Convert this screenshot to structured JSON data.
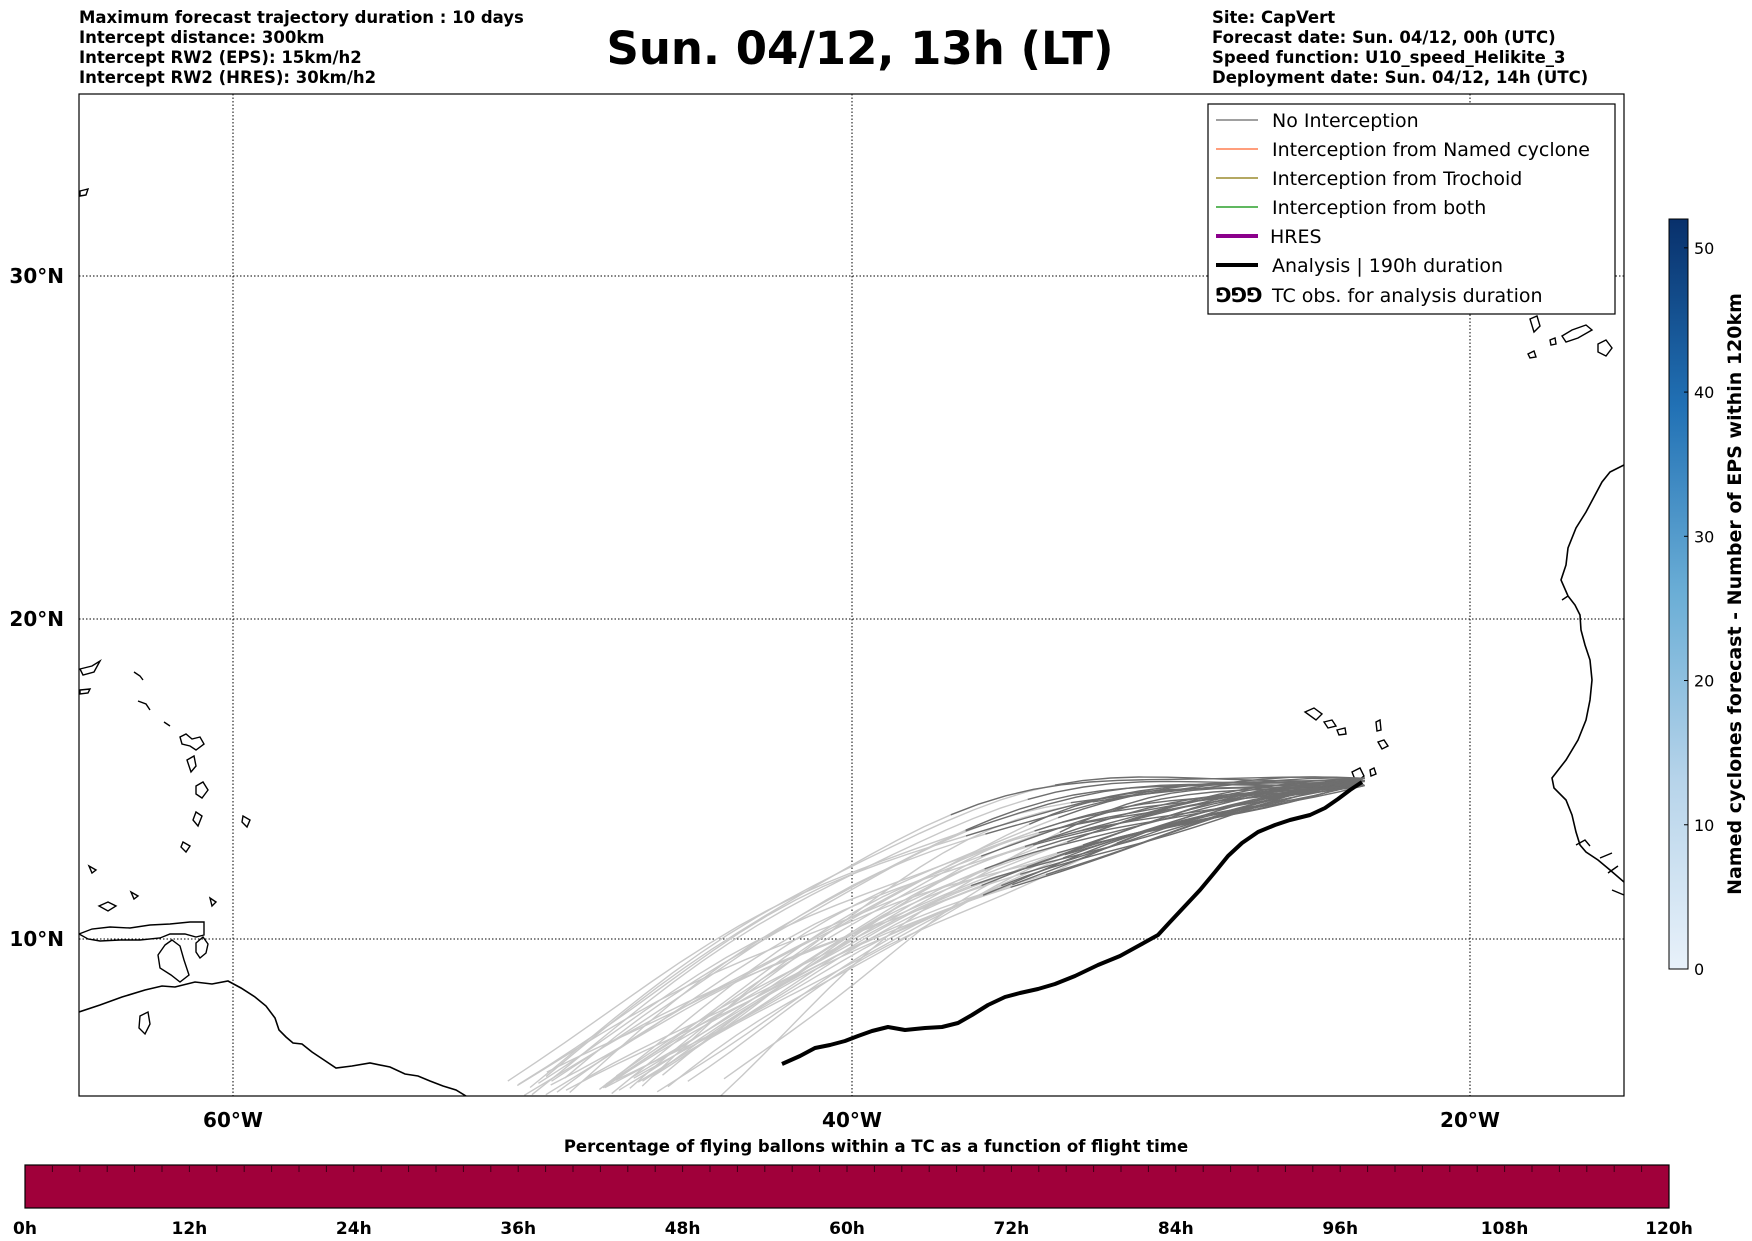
{
  "header": {
    "left_lines": [
      "Maximum forecast trajectory duration : 10 days",
      "Intercept distance: 300km",
      "Intercept RW2 (EPS):  15km/h2",
      "Intercept RW2 (HRES): 30km/h2"
    ],
    "title": "Sun. 04/12, 13h (LT)",
    "right_lines": [
      "Site: CapVert",
      "Forecast date: Sun. 04/12, 00h (UTC)",
      "Speed function: U10_speed_Helikite_3",
      "Deployment date: Sun. 04/12, 14h (UTC)"
    ]
  },
  "map": {
    "lat_labels": [
      "30°N",
      "20°N",
      "10°N"
    ],
    "lon_labels": [
      "60°W",
      "40°W",
      "20°W"
    ]
  },
  "legend": {
    "items": [
      {
        "label": "No Interception",
        "color": "#808080",
        "style": "thin"
      },
      {
        "label": "Interception from Named cyclone",
        "color": "#ff7f50",
        "style": "thin"
      },
      {
        "label": "Interception from Trochoid",
        "color": "#9b8b2f",
        "style": "thin"
      },
      {
        "label": "Interception from both",
        "color": "#2ca02c",
        "style": "thin"
      },
      {
        "label": "HRES",
        "color": "#8b008b",
        "style": "thick"
      },
      {
        "label": "Analysis | 190h duration",
        "color": "#000000",
        "style": "thick"
      },
      {
        "label": "TC obs. for analysis duration",
        "color": "#000000",
        "style": "symbol"
      }
    ]
  },
  "colorbar": {
    "title": "Named cyclones forecast - Number of EPS within 120km",
    "ticks": [
      "0",
      "10",
      "20",
      "30",
      "40",
      "50"
    ],
    "range": [
      0,
      52
    ]
  },
  "flight_bar": {
    "title": "Percentage of flying ballons within a TC as a function of flight time",
    "ticks": [
      "0h",
      "12h",
      "24h",
      "36h",
      "48h",
      "60h",
      "72h",
      "84h",
      "96h",
      "108h",
      "120h"
    ],
    "color": "#a0003a"
  }
}
